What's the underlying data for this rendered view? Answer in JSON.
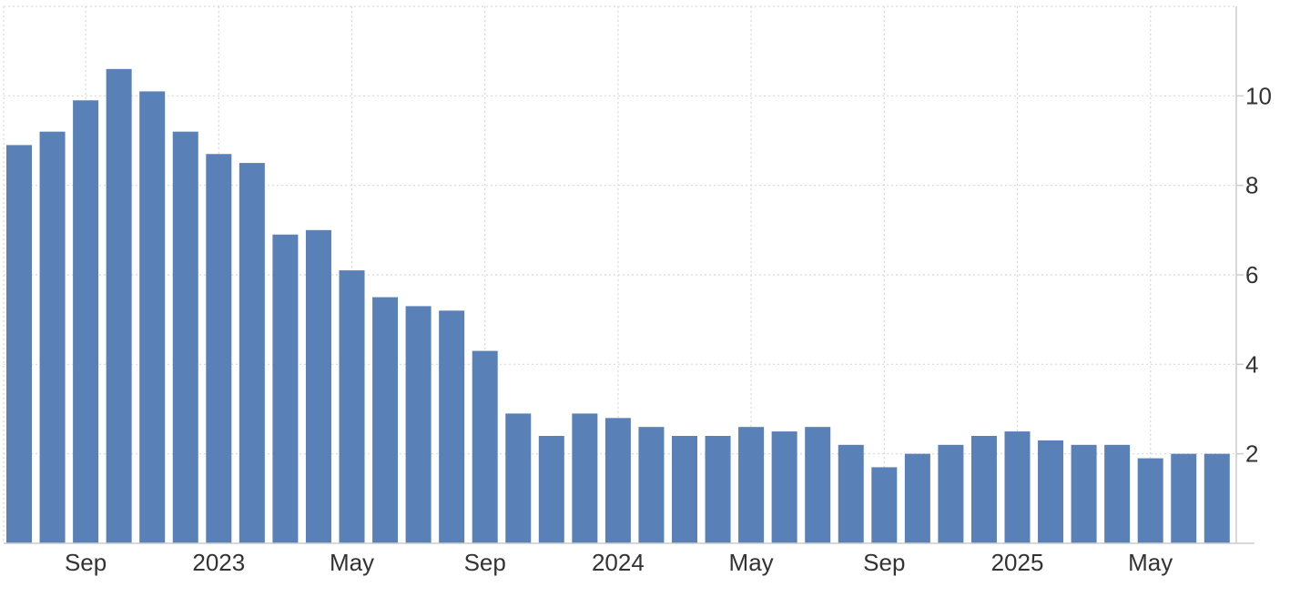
{
  "chart_data": {
    "type": "bar",
    "categories": [
      "2022-07",
      "2022-08",
      "2022-09",
      "2022-10",
      "2022-11",
      "2022-12",
      "2023-01",
      "2023-02",
      "2023-03",
      "2023-04",
      "2023-05",
      "2023-06",
      "2023-07",
      "2023-08",
      "2023-09",
      "2023-10",
      "2023-11",
      "2023-12",
      "2024-01",
      "2024-02",
      "2024-03",
      "2024-04",
      "2024-05",
      "2024-06",
      "2024-07",
      "2024-08",
      "2024-09",
      "2024-10",
      "2024-11",
      "2024-12",
      "2025-01",
      "2025-02",
      "2025-03",
      "2025-04",
      "2025-05",
      "2025-06",
      "2025-07"
    ],
    "values": [
      8.9,
      9.2,
      9.9,
      10.6,
      10.1,
      9.2,
      8.7,
      8.5,
      6.9,
      7.0,
      6.1,
      5.5,
      5.3,
      5.2,
      4.3,
      2.9,
      2.4,
      2.9,
      2.8,
      2.6,
      2.4,
      2.4,
      2.6,
      2.5,
      2.6,
      2.2,
      1.7,
      2.0,
      2.2,
      2.4,
      2.5,
      2.3,
      2.2,
      2.2,
      1.9,
      2.0,
      2.0
    ],
    "x_tick_labels": [
      {
        "label": "Sep",
        "category": "2022-09"
      },
      {
        "label": "2023",
        "category": "2023-01"
      },
      {
        "label": "May",
        "category": "2023-05"
      },
      {
        "label": "Sep",
        "category": "2023-09"
      },
      {
        "label": "2024",
        "category": "2024-01"
      },
      {
        "label": "May",
        "category": "2024-05"
      },
      {
        "label": "Sep",
        "category": "2024-09"
      },
      {
        "label": "2025",
        "category": "2025-01"
      },
      {
        "label": "May",
        "category": "2025-05"
      }
    ],
    "y_ticks": [
      2,
      4,
      6,
      8,
      10
    ],
    "ylim": [
      0,
      12
    ],
    "y_axis_side": "right",
    "grid": true,
    "title": "",
    "xlabel": "",
    "ylabel": "",
    "bar_color": "#5a80b8"
  }
}
